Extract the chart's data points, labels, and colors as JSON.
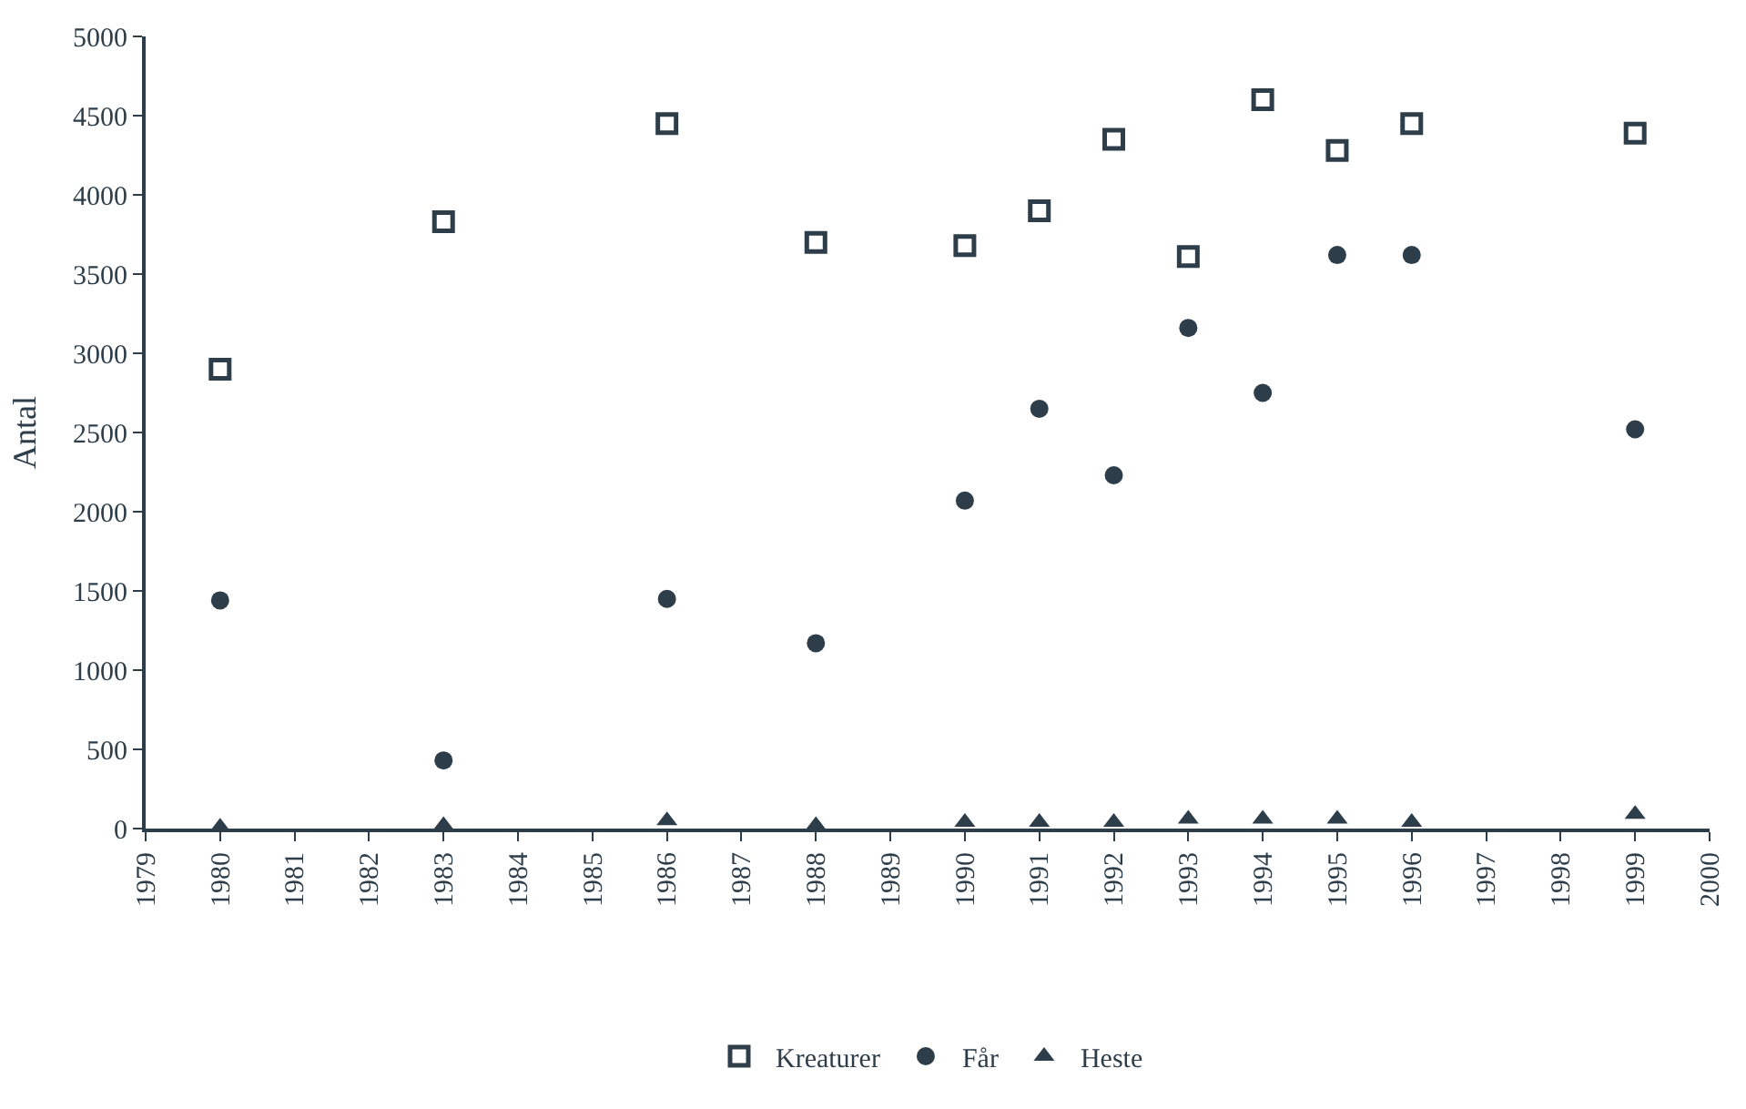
{
  "chart_data": {
    "type": "scatter",
    "ylabel": "Antal",
    "x": [
      1980,
      1983,
      1986,
      1988,
      1990,
      1991,
      1992,
      1993,
      1994,
      1995,
      1996,
      1999
    ],
    "series": [
      {
        "name": "Kreaturer",
        "color": "#2d3e4a",
        "marker": "square",
        "values": [
          2900,
          3830,
          4450,
          3700,
          3680,
          3900,
          4350,
          3610,
          4600,
          4280,
          4450,
          4390
        ]
      },
      {
        "name": "Får",
        "color": "#2d3e4a",
        "marker": "circle",
        "values": [
          1440,
          430,
          1450,
          1170,
          2070,
          2650,
          2230,
          3160,
          2750,
          3620,
          3620,
          2520
        ]
      },
      {
        "name": "Heste",
        "color": "#2d3e4a",
        "marker": "triangle",
        "values": [
          10,
          20,
          50,
          20,
          40,
          40,
          40,
          60,
          60,
          60,
          40,
          90
        ]
      }
    ],
    "xlim": [
      1979,
      2000
    ],
    "xticks": [
      1979,
      1980,
      1981,
      1982,
      1983,
      1984,
      1985,
      1986,
      1987,
      1988,
      1989,
      1990,
      1991,
      1992,
      1993,
      1994,
      1995,
      1996,
      1997,
      1998,
      1999,
      2000
    ],
    "ylim": [
      0,
      5000
    ],
    "yticks": [
      0,
      500,
      1000,
      1500,
      2000,
      2500,
      3000,
      3500,
      4000,
      4500,
      5000
    ],
    "legend": "bottom"
  }
}
